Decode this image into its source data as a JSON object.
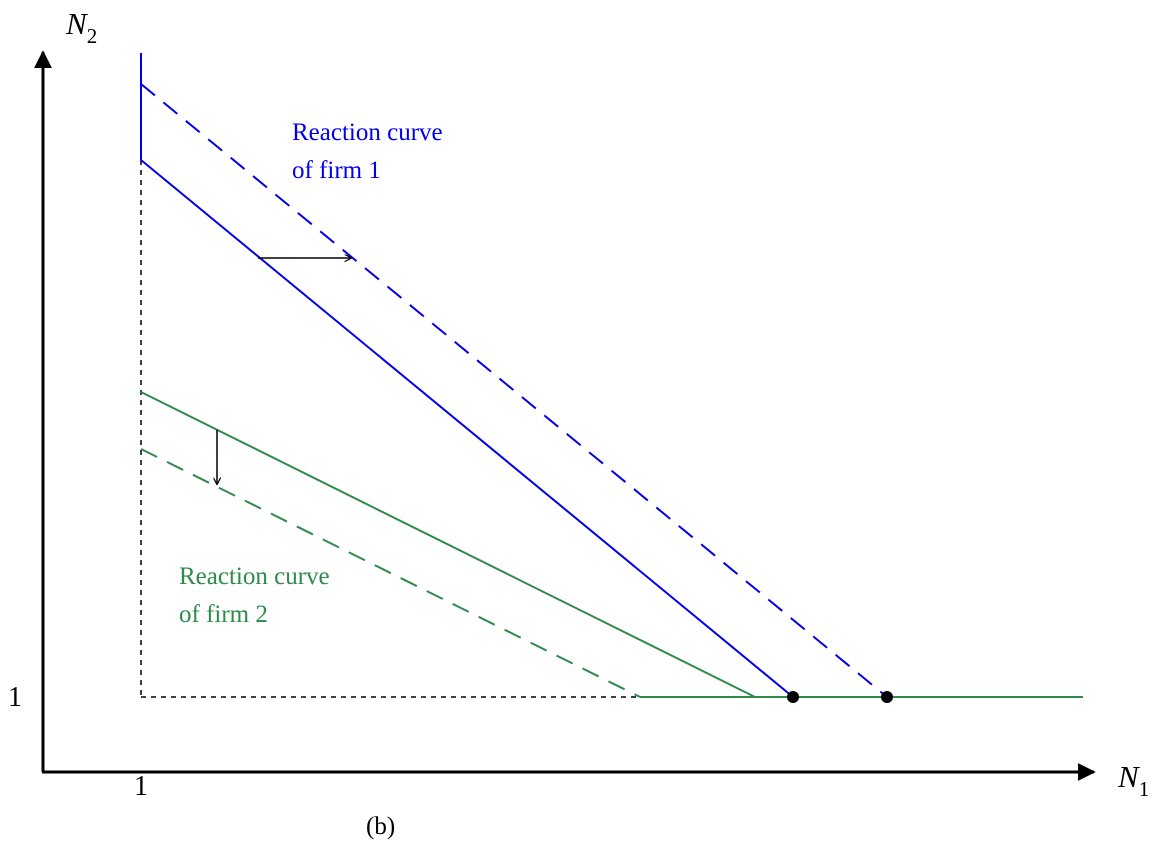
{
  "axes": {
    "y_label": "N",
    "y_subscript": "2",
    "x_label": "N",
    "x_subscript": "1",
    "y_tick": "1",
    "x_tick": "1"
  },
  "labels": {
    "firm1_line1": "Reaction curve",
    "firm1_line2": "of firm 1",
    "firm2_line1": "Reaction curve",
    "firm2_line2": "of firm 2"
  },
  "caption": "(b)",
  "colors": {
    "firm1": "#0000ee",
    "firm2": "#2e8b4a",
    "axis": "#000000",
    "guide": "#000000"
  }
}
